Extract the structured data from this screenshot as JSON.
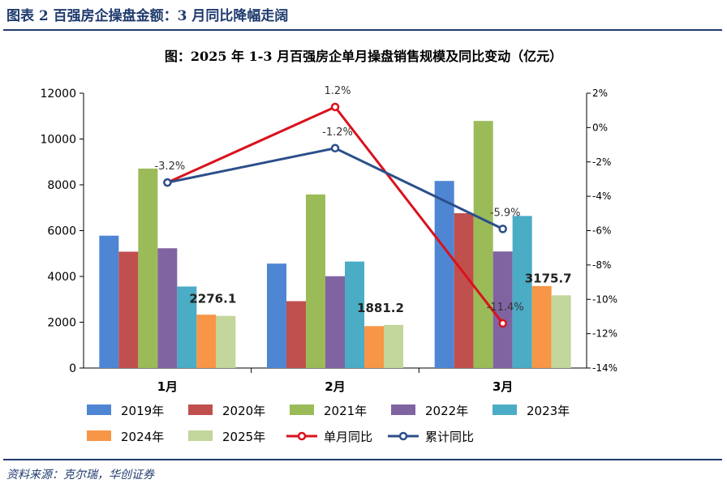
{
  "header": {
    "figure_title": "图表 2   百强房企操盘金额：3 月同比降幅走阔"
  },
  "footer": {
    "source": "资料来源：克尔瑞，华创证券"
  },
  "chart_data": {
    "type": "bar",
    "title": "图：2025 年 1-3 月百强房企单月操盘销售规模及同比变动（亿元）",
    "categories": [
      "1月",
      "2月",
      "3月"
    ],
    "left_axis": {
      "min": 0,
      "max": 12000,
      "ticks": [
        "0",
        "2000",
        "4000",
        "6000",
        "8000",
        "10000",
        "12000"
      ]
    },
    "right_axis": {
      "min": -14,
      "max": 2,
      "ticks": [
        "-14%",
        "-12%",
        "-10%",
        "-8%",
        "-6%",
        "-4%",
        "-2%",
        "0%",
        "2%"
      ]
    },
    "bar_series": [
      {
        "name": "2019年",
        "color": "#4f86d4",
        "values": [
          5780,
          4560,
          8170
        ]
      },
      {
        "name": "2020年",
        "color": "#c0504d",
        "values": [
          5080,
          2920,
          6760
        ]
      },
      {
        "name": "2021年",
        "color": "#9bbb59",
        "values": [
          8710,
          7580,
          10790
        ]
      },
      {
        "name": "2022年",
        "color": "#8064a2",
        "values": [
          5230,
          4010,
          5090
        ]
      },
      {
        "name": "2023年",
        "color": "#4bacc6",
        "values": [
          3560,
          4650,
          6640
        ]
      },
      {
        "name": "2024年",
        "color": "#f79646",
        "values": [
          2330,
          1830,
          3580
        ]
      },
      {
        "name": "2025年",
        "color": "#c3d69b",
        "values": [
          2276.1,
          1881.2,
          3175.7
        ]
      }
    ],
    "line_series": [
      {
        "name": "单月同比",
        "color": "#d9121d",
        "values": [
          -3.2,
          1.2,
          -11.4
        ],
        "labels": [
          "",
          "1.2%",
          "-11.4%"
        ]
      },
      {
        "name": "累计同比",
        "color": "#2b4f8a",
        "values": [
          -3.2,
          -1.2,
          -5.9
        ],
        "labels": [
          "-3.2%",
          "-1.2%",
          "-5.9%"
        ]
      }
    ],
    "bar_data_labels": [
      "2276.1",
      "1881.2",
      "3175.7"
    ],
    "grid": false,
    "legend_position": "bottom"
  }
}
